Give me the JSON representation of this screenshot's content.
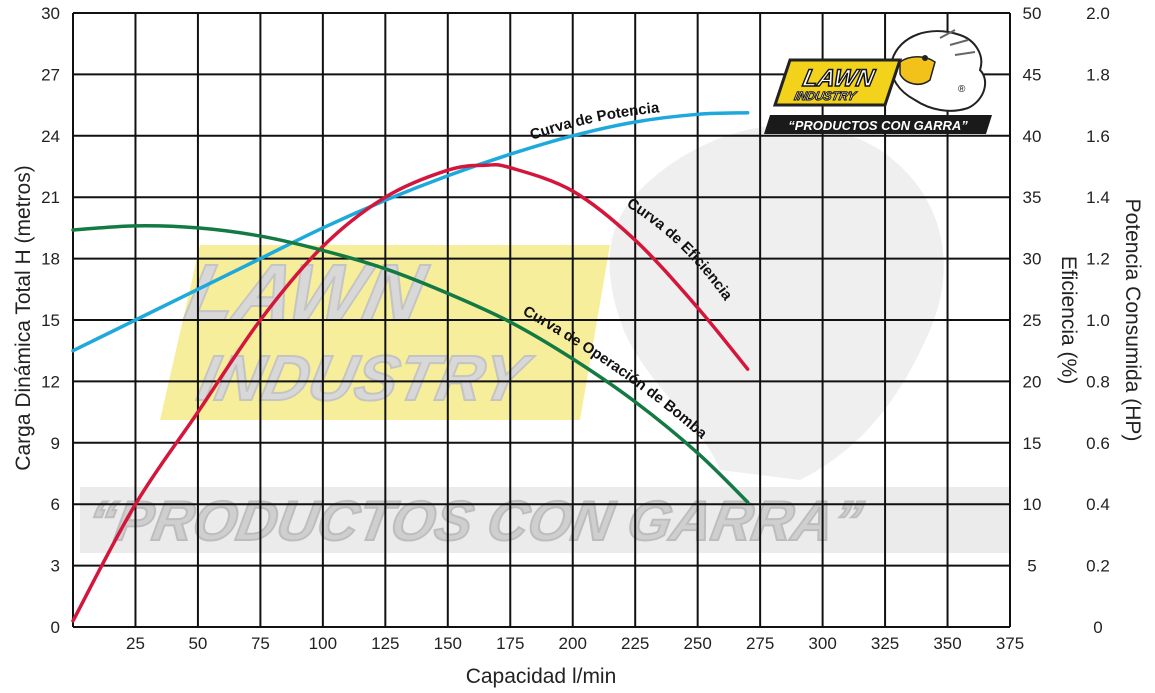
{
  "chart_data": {
    "type": "line",
    "xlabel": "Capacidad l/min",
    "ylabel_left": "Carga Dinámica Total H (metros)",
    "ylabel_right_1": "Eficiencia (%)",
    "ylabel_right_2": "Potencia Consumida (HP)",
    "xlim": [
      0,
      375
    ],
    "ylim_left": [
      0,
      30
    ],
    "ylim_right_1": [
      0,
      50
    ],
    "ylim_right_2": [
      0,
      2.0
    ],
    "grid": true,
    "x_ticks": [
      "25",
      "50",
      "75",
      "100",
      "125",
      "150",
      "175",
      "200",
      "225",
      "250",
      "275",
      "300",
      "325",
      "350",
      "375"
    ],
    "y_left_ticks": [
      "0",
      "3",
      "6",
      "9",
      "12",
      "15",
      "18",
      "21",
      "24",
      "27",
      "30"
    ],
    "y_right1_ticks": [
      "5",
      "10",
      "15",
      "20",
      "25",
      "30",
      "35",
      "40",
      "45",
      "50"
    ],
    "y_right2_ticks": [
      "0",
      "0.2",
      "0.4",
      "0.6",
      "0.8",
      "1.0",
      "1.2",
      "1.4",
      "1.6",
      "1.8",
      "2.0"
    ],
    "series": [
      {
        "name": "Curva de Potencia",
        "color": "#1ea9dc",
        "axis": "potencia_hp",
        "x": [
          0,
          25,
          50,
          75,
          100,
          125,
          150,
          175,
          200,
          225,
          250,
          270
        ],
        "y": [
          0.9,
          1.0,
          1.1,
          1.2,
          1.3,
          1.39,
          1.47,
          1.54,
          1.6,
          1.645,
          1.67,
          1.675
        ]
      },
      {
        "name": "Curva de Eficiencia",
        "color": "#d4163c",
        "axis": "eficiencia_pct",
        "x": [
          0,
          25,
          50,
          75,
          100,
          125,
          150,
          165,
          175,
          200,
          225,
          250,
          270
        ],
        "y": [
          0.5,
          10,
          17.5,
          25,
          31,
          35,
          37.2,
          37.6,
          37.4,
          35.5,
          31.5,
          26,
          21
        ]
      },
      {
        "name": "Curva de Operación de Bomba",
        "color": "#137a43",
        "axis": "carga_m",
        "x": [
          0,
          25,
          50,
          75,
          100,
          125,
          150,
          175,
          200,
          225,
          250,
          270
        ],
        "y": [
          19.4,
          19.6,
          19.5,
          19.1,
          18.4,
          17.5,
          16.3,
          14.9,
          13.1,
          11.0,
          8.5,
          6.1
        ]
      }
    ],
    "curve_labels": {
      "potencia": "Curva de Potencia",
      "eficiencia": "Curva de Eficiencia",
      "operacion": "Curva de Operación de Bomba"
    }
  },
  "watermark": {
    "brand_line1": "LAWN",
    "brand_line2": "INDUSTRY",
    "slogan": "“PRODUCTOS CON GARRA”",
    "registered": "®"
  },
  "colors": {
    "grid": "#111111",
    "brand_yellow": "#f2d21a",
    "watermark_yellow": "#f6ee9a",
    "watermark_gray": "#c8c8c8"
  }
}
